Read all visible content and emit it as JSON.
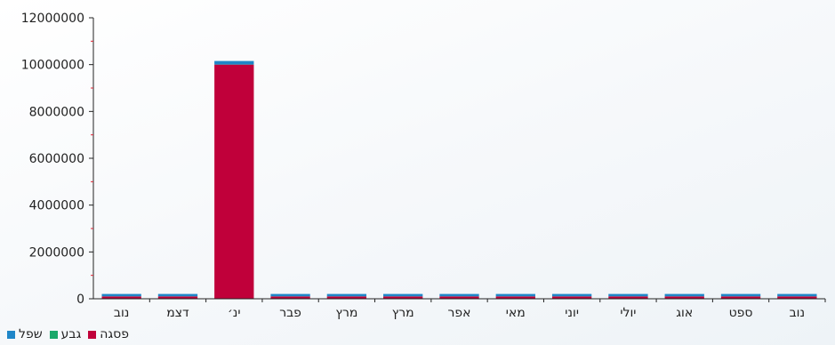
{
  "chart_data": {
    "type": "bar",
    "stacked": true,
    "title": "",
    "xlabel": "",
    "ylabel": "",
    "ylim": [
      0,
      12000000
    ],
    "y_ticks": [
      0,
      2000000,
      4000000,
      6000000,
      8000000,
      10000000,
      12000000
    ],
    "y_tick_labels": [
      "0",
      "2000000",
      "4000000",
      "6000000",
      "8000000",
      "10000000",
      "12000000"
    ],
    "categories": [
      "נוב",
      "דצמ",
      "ינ׳",
      "פבר",
      "מרץ",
      "מרץ",
      "אפר",
      "מאי",
      "יוני",
      "יולי",
      "אוג",
      "ספט",
      "נוב"
    ],
    "series": [
      {
        "name": "פסגה",
        "color": "#c0003a",
        "values": [
          100000,
          100000,
          10000000,
          100000,
          100000,
          100000,
          100000,
          100000,
          100000,
          100000,
          100000,
          100000,
          100000
        ]
      },
      {
        "name": "גבע",
        "color": "#1aa86a",
        "values": [
          5000,
          5000,
          5000,
          5000,
          5000,
          5000,
          5000,
          5000,
          5000,
          5000,
          5000,
          5000,
          5000
        ]
      },
      {
        "name": "שפל",
        "color": "#1f86c8",
        "values": [
          100000,
          100000,
          150000,
          100000,
          100000,
          100000,
          100000,
          100000,
          100000,
          100000,
          100000,
          100000,
          100000
        ]
      }
    ],
    "legend_position": "bottom-left",
    "grid": false
  }
}
